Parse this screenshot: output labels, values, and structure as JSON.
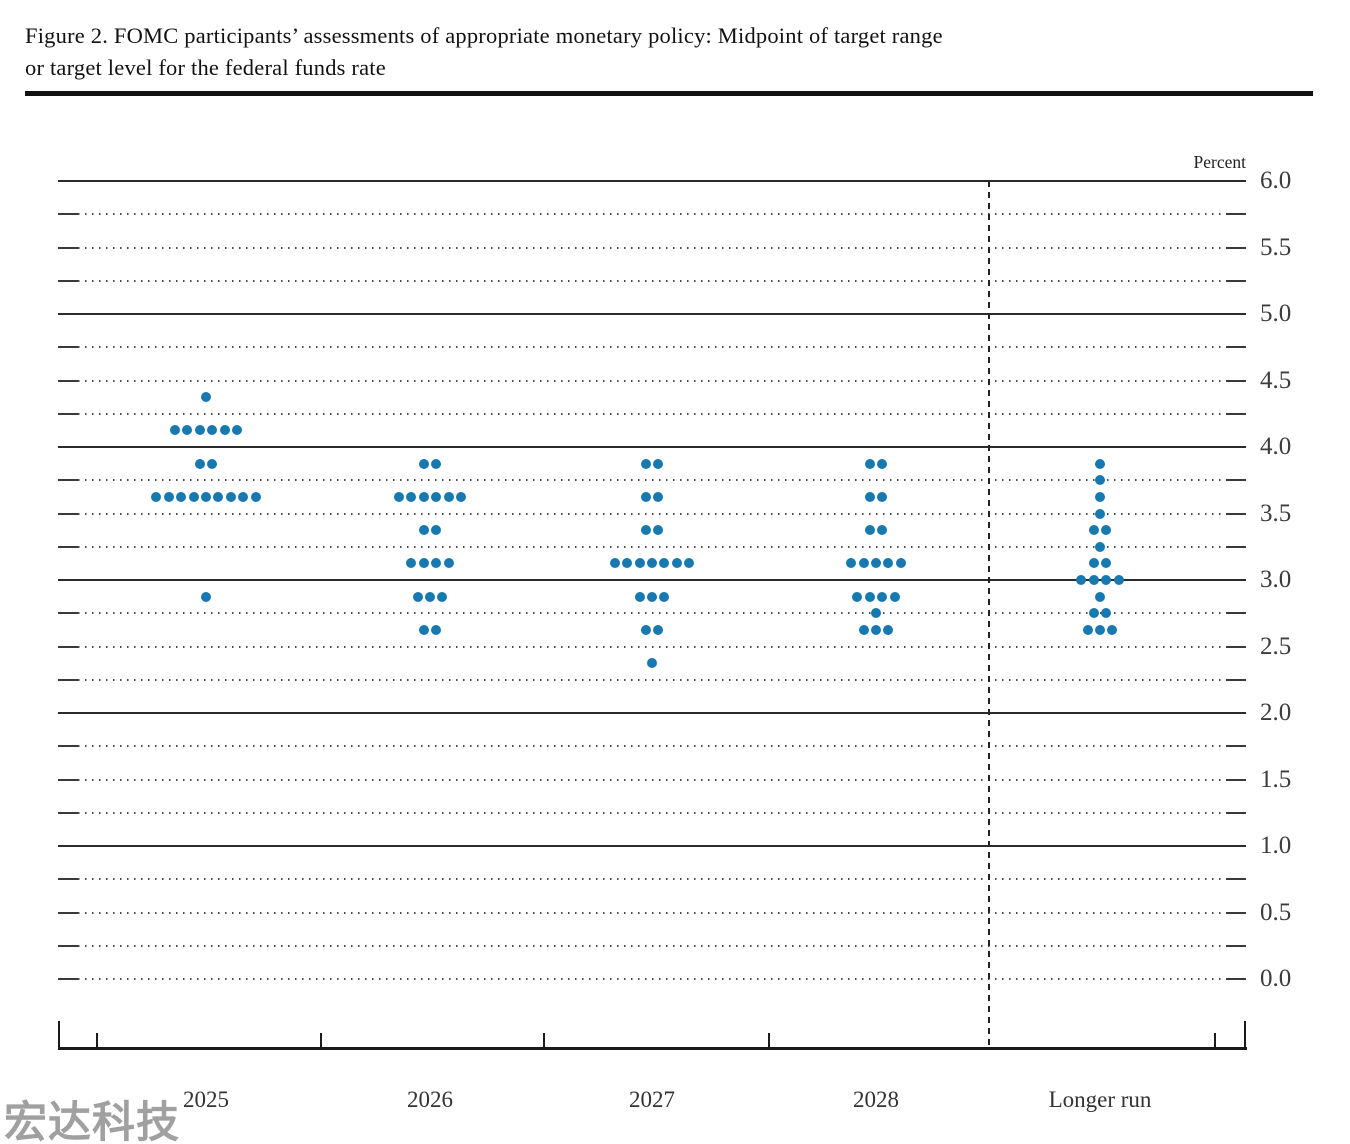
{
  "title": {
    "line1": "Figure 2.  FOMC participants’ assessments of appropriate monetary policy: Midpoint of target range",
    "line2": "or target level for the federal funds rate"
  },
  "watermark": "宏达科技",
  "chart_data": {
    "type": "scatter",
    "subtype": "fomc-dot-plot",
    "unit_label": "Percent",
    "categories": [
      "2025",
      "2026",
      "2027",
      "2028",
      "Longer run"
    ],
    "ylim": [
      0.0,
      6.0
    ],
    "gridline_step": 0.25,
    "solid_gridlines": [
      1.0,
      2.0,
      3.0,
      4.0,
      5.0,
      6.0
    ],
    "grid_on": true,
    "legend_position": "none",
    "dot_color": "#1878b0",
    "y_tick_labels": [
      {
        "value": 6.0,
        "label": "6.0"
      },
      {
        "value": 5.5,
        "label": "5.5"
      },
      {
        "value": 5.0,
        "label": "5.0"
      },
      {
        "value": 4.5,
        "label": "4.5"
      },
      {
        "value": 4.0,
        "label": "4.0"
      },
      {
        "value": 3.5,
        "label": "3.5"
      },
      {
        "value": 3.0,
        "label": "3.0"
      },
      {
        "value": 2.5,
        "label": "2.5"
      },
      {
        "value": 2.0,
        "label": "2.0"
      },
      {
        "value": 1.5,
        "label": "1.5"
      },
      {
        "value": 1.0,
        "label": "1.0"
      },
      {
        "value": 0.5,
        "label": "0.5"
      },
      {
        "value": 0.0,
        "label": "0.0"
      }
    ],
    "series": [
      {
        "category": "2025",
        "dots": [
          {
            "rate": 4.375,
            "count": 1
          },
          {
            "rate": 4.125,
            "count": 6
          },
          {
            "rate": 3.875,
            "count": 2
          },
          {
            "rate": 3.625,
            "count": 9
          },
          {
            "rate": 2.875,
            "count": 1
          }
        ]
      },
      {
        "category": "2026",
        "dots": [
          {
            "rate": 3.875,
            "count": 2
          },
          {
            "rate": 3.625,
            "count": 6
          },
          {
            "rate": 3.375,
            "count": 2
          },
          {
            "rate": 3.125,
            "count": 4
          },
          {
            "rate": 2.875,
            "count": 3
          },
          {
            "rate": 2.625,
            "count": 2
          }
        ]
      },
      {
        "category": "2027",
        "dots": [
          {
            "rate": 3.875,
            "count": 2
          },
          {
            "rate": 3.625,
            "count": 2
          },
          {
            "rate": 3.375,
            "count": 2
          },
          {
            "rate": 3.125,
            "count": 7
          },
          {
            "rate": 2.875,
            "count": 3
          },
          {
            "rate": 2.625,
            "count": 2
          },
          {
            "rate": 2.375,
            "count": 1
          }
        ]
      },
      {
        "category": "2028",
        "dots": [
          {
            "rate": 3.875,
            "count": 2
          },
          {
            "rate": 3.625,
            "count": 2
          },
          {
            "rate": 3.375,
            "count": 2
          },
          {
            "rate": 3.125,
            "count": 5
          },
          {
            "rate": 2.875,
            "count": 4
          },
          {
            "rate": 2.75,
            "count": 1
          },
          {
            "rate": 2.625,
            "count": 3
          }
        ]
      },
      {
        "category": "Longer run",
        "dots": [
          {
            "rate": 3.875,
            "count": 1
          },
          {
            "rate": 3.75,
            "count": 1
          },
          {
            "rate": 3.625,
            "count": 1
          },
          {
            "rate": 3.5,
            "count": 1
          },
          {
            "rate": 3.375,
            "count": 2
          },
          {
            "rate": 3.25,
            "count": 1
          },
          {
            "rate": 3.125,
            "count": 2
          },
          {
            "rate": 3.0,
            "count": 4
          },
          {
            "rate": 2.875,
            "count": 1
          },
          {
            "rate": 2.75,
            "count": 2
          },
          {
            "rate": 2.625,
            "count": 3
          }
        ]
      }
    ]
  }
}
